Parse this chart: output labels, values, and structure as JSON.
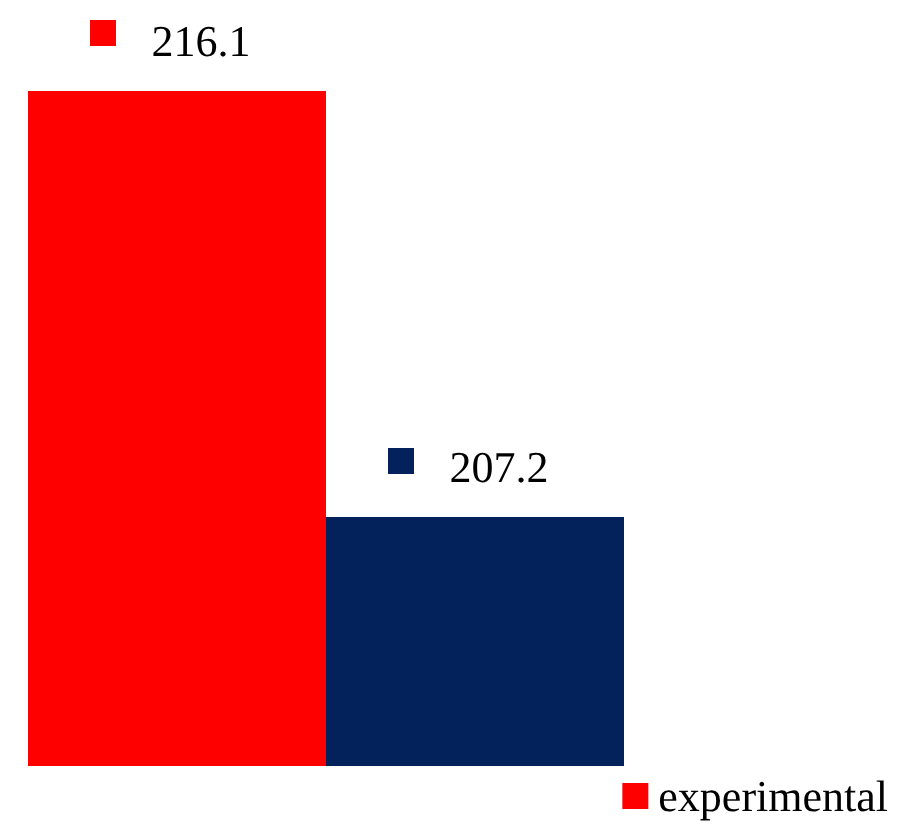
{
  "chart_data": {
    "type": "bar",
    "categories": [
      null
    ],
    "series": [
      {
        "name": "experimental",
        "color": "#ff0000",
        "values": [
          216.1
        ]
      },
      {
        "color": "#03215b",
        "values": [
          207.2
        ]
      }
    ],
    "ylim": [
      202,
      218
    ],
    "data_labels": true,
    "legend": "bottom right",
    "grid": false,
    "tick_labels": false
  }
}
